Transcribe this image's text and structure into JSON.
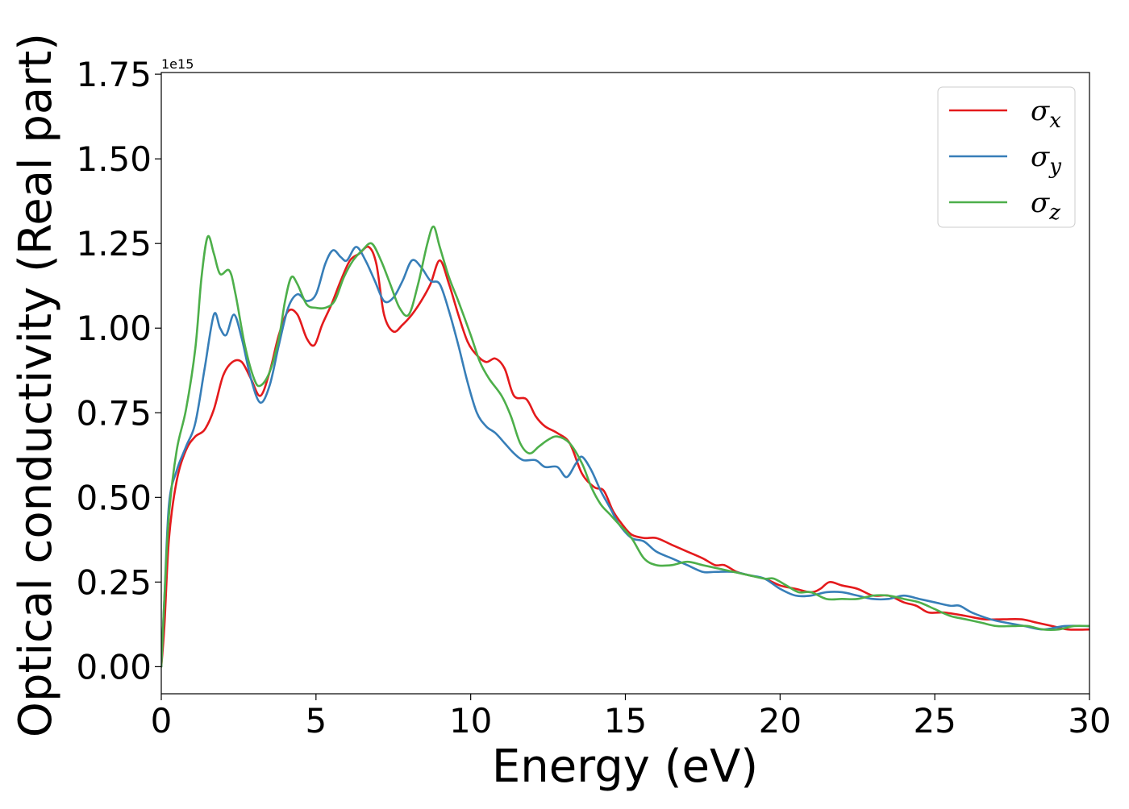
{
  "chart_data": {
    "type": "line",
    "xlabel": "Energy (eV)",
    "ylabel": "Optical conductivity (Real part)",
    "offset_text": "1e15",
    "xlim": [
      0,
      30
    ],
    "ylim": [
      -0.08,
      1.755
    ],
    "x_ticks": [
      0,
      5,
      10,
      15,
      20,
      25,
      30
    ],
    "x_tick_labels": [
      "0",
      "5",
      "10",
      "15",
      "20",
      "25",
      "30"
    ],
    "y_ticks": [
      0.0,
      0.25,
      0.5,
      0.75,
      1.0,
      1.25,
      1.5,
      1.75
    ],
    "y_tick_labels": [
      "0.00",
      "0.25",
      "0.50",
      "0.75",
      "1.00",
      "1.25",
      "1.50",
      "1.75"
    ],
    "grid": false,
    "legend_position": "top-right",
    "series": [
      {
        "name": "σx",
        "symbol": "σ",
        "sub": "x",
        "color": "#e41a1c",
        "points": [
          [
            0,
            0
          ],
          [
            0.1,
            0.12
          ],
          [
            0.25,
            0.38
          ],
          [
            0.5,
            0.55
          ],
          [
            0.8,
            0.64
          ],
          [
            1.1,
            0.68
          ],
          [
            1.4,
            0.7
          ],
          [
            1.7,
            0.76
          ],
          [
            2.0,
            0.86
          ],
          [
            2.3,
            0.9
          ],
          [
            2.6,
            0.9
          ],
          [
            2.9,
            0.85
          ],
          [
            3.2,
            0.8
          ],
          [
            3.5,
            0.87
          ],
          [
            3.8,
            0.98
          ],
          [
            4.1,
            1.05
          ],
          [
            4.4,
            1.04
          ],
          [
            4.7,
            0.97
          ],
          [
            4.95,
            0.95
          ],
          [
            5.2,
            1.01
          ],
          [
            5.5,
            1.07
          ],
          [
            5.8,
            1.14
          ],
          [
            6.1,
            1.2
          ],
          [
            6.4,
            1.22
          ],
          [
            6.7,
            1.24
          ],
          [
            6.95,
            1.19
          ],
          [
            7.2,
            1.04
          ],
          [
            7.5,
            0.99
          ],
          [
            7.8,
            1.01
          ],
          [
            8.1,
            1.04
          ],
          [
            8.4,
            1.08
          ],
          [
            8.7,
            1.13
          ],
          [
            9.0,
            1.2
          ],
          [
            9.3,
            1.13
          ],
          [
            9.6,
            1.04
          ],
          [
            9.9,
            0.96
          ],
          [
            10.2,
            0.92
          ],
          [
            10.5,
            0.9
          ],
          [
            10.8,
            0.91
          ],
          [
            11.1,
            0.88
          ],
          [
            11.4,
            0.8
          ],
          [
            11.8,
            0.79
          ],
          [
            12.1,
            0.74
          ],
          [
            12.4,
            0.71
          ],
          [
            12.8,
            0.69
          ],
          [
            13.2,
            0.66
          ],
          [
            13.6,
            0.57
          ],
          [
            14.0,
            0.53
          ],
          [
            14.3,
            0.52
          ],
          [
            14.6,
            0.46
          ],
          [
            14.9,
            0.42
          ],
          [
            15.2,
            0.39
          ],
          [
            15.6,
            0.38
          ],
          [
            16.0,
            0.38
          ],
          [
            16.5,
            0.36
          ],
          [
            17.0,
            0.34
          ],
          [
            17.5,
            0.32
          ],
          [
            17.9,
            0.3
          ],
          [
            18.2,
            0.3
          ],
          [
            18.6,
            0.28
          ],
          [
            19.0,
            0.27
          ],
          [
            19.5,
            0.26
          ],
          [
            20.0,
            0.24
          ],
          [
            20.5,
            0.23
          ],
          [
            21.0,
            0.22
          ],
          [
            21.3,
            0.23
          ],
          [
            21.6,
            0.25
          ],
          [
            22.0,
            0.24
          ],
          [
            22.5,
            0.23
          ],
          [
            23.0,
            0.21
          ],
          [
            23.5,
            0.21
          ],
          [
            24.0,
            0.19
          ],
          [
            24.4,
            0.18
          ],
          [
            24.8,
            0.16
          ],
          [
            25.3,
            0.16
          ],
          [
            26.0,
            0.15
          ],
          [
            26.6,
            0.14
          ],
          [
            27.2,
            0.14
          ],
          [
            27.8,
            0.14
          ],
          [
            28.3,
            0.13
          ],
          [
            28.8,
            0.12
          ],
          [
            29.3,
            0.11
          ],
          [
            30.0,
            0.11
          ]
        ]
      },
      {
        "name": "σy",
        "symbol": "σ",
        "sub": "y",
        "color": "#377eb8",
        "points": [
          [
            0,
            0
          ],
          [
            0.1,
            0.2
          ],
          [
            0.25,
            0.48
          ],
          [
            0.5,
            0.58
          ],
          [
            0.8,
            0.65
          ],
          [
            1.1,
            0.72
          ],
          [
            1.4,
            0.88
          ],
          [
            1.7,
            1.04
          ],
          [
            1.9,
            1.0
          ],
          [
            2.1,
            0.98
          ],
          [
            2.35,
            1.04
          ],
          [
            2.6,
            0.97
          ],
          [
            2.9,
            0.85
          ],
          [
            3.2,
            0.78
          ],
          [
            3.5,
            0.83
          ],
          [
            3.8,
            0.95
          ],
          [
            4.1,
            1.06
          ],
          [
            4.4,
            1.1
          ],
          [
            4.7,
            1.08
          ],
          [
            5.0,
            1.1
          ],
          [
            5.3,
            1.19
          ],
          [
            5.55,
            1.23
          ],
          [
            5.8,
            1.21
          ],
          [
            6.0,
            1.2
          ],
          [
            6.3,
            1.24
          ],
          [
            6.6,
            1.2
          ],
          [
            6.9,
            1.14
          ],
          [
            7.2,
            1.08
          ],
          [
            7.5,
            1.09
          ],
          [
            7.8,
            1.14
          ],
          [
            8.1,
            1.2
          ],
          [
            8.4,
            1.18
          ],
          [
            8.7,
            1.14
          ],
          [
            9.0,
            1.13
          ],
          [
            9.3,
            1.05
          ],
          [
            9.6,
            0.95
          ],
          [
            9.9,
            0.84
          ],
          [
            10.2,
            0.75
          ],
          [
            10.5,
            0.71
          ],
          [
            10.8,
            0.69
          ],
          [
            11.1,
            0.66
          ],
          [
            11.4,
            0.63
          ],
          [
            11.7,
            0.61
          ],
          [
            12.1,
            0.61
          ],
          [
            12.4,
            0.59
          ],
          [
            12.8,
            0.59
          ],
          [
            13.1,
            0.56
          ],
          [
            13.4,
            0.6
          ],
          [
            13.6,
            0.62
          ],
          [
            13.9,
            0.58
          ],
          [
            14.2,
            0.52
          ],
          [
            14.5,
            0.47
          ],
          [
            14.8,
            0.42
          ],
          [
            15.2,
            0.38
          ],
          [
            15.6,
            0.37
          ],
          [
            16.0,
            0.34
          ],
          [
            16.5,
            0.32
          ],
          [
            17.0,
            0.3
          ],
          [
            17.5,
            0.28
          ],
          [
            17.9,
            0.28
          ],
          [
            18.5,
            0.28
          ],
          [
            19.0,
            0.27
          ],
          [
            19.5,
            0.26
          ],
          [
            20.0,
            0.23
          ],
          [
            20.5,
            0.21
          ],
          [
            21.0,
            0.21
          ],
          [
            21.5,
            0.22
          ],
          [
            22.0,
            0.22
          ],
          [
            22.5,
            0.21
          ],
          [
            23.0,
            0.2
          ],
          [
            23.5,
            0.2
          ],
          [
            24.0,
            0.21
          ],
          [
            24.5,
            0.2
          ],
          [
            25.0,
            0.19
          ],
          [
            25.5,
            0.18
          ],
          [
            25.8,
            0.18
          ],
          [
            26.2,
            0.16
          ],
          [
            26.8,
            0.14
          ],
          [
            27.3,
            0.13
          ],
          [
            27.9,
            0.12
          ],
          [
            28.5,
            0.11
          ],
          [
            29.2,
            0.12
          ],
          [
            30.0,
            0.12
          ]
        ]
      },
      {
        "name": "σz",
        "symbol": "σ",
        "sub": "z",
        "color": "#4daf4a",
        "points": [
          [
            0,
            0
          ],
          [
            0.1,
            0.2
          ],
          [
            0.25,
            0.45
          ],
          [
            0.5,
            0.64
          ],
          [
            0.8,
            0.76
          ],
          [
            1.1,
            0.94
          ],
          [
            1.3,
            1.15
          ],
          [
            1.5,
            1.27
          ],
          [
            1.7,
            1.22
          ],
          [
            1.9,
            1.16
          ],
          [
            2.2,
            1.17
          ],
          [
            2.4,
            1.1
          ],
          [
            2.7,
            0.95
          ],
          [
            3.0,
            0.85
          ],
          [
            3.2,
            0.83
          ],
          [
            3.5,
            0.87
          ],
          [
            3.8,
            0.97
          ],
          [
            4.0,
            1.08
          ],
          [
            4.2,
            1.15
          ],
          [
            4.4,
            1.13
          ],
          [
            4.7,
            1.07
          ],
          [
            5.0,
            1.06
          ],
          [
            5.3,
            1.06
          ],
          [
            5.6,
            1.08
          ],
          [
            5.9,
            1.15
          ],
          [
            6.2,
            1.2
          ],
          [
            6.5,
            1.23
          ],
          [
            6.8,
            1.25
          ],
          [
            7.1,
            1.2
          ],
          [
            7.4,
            1.13
          ],
          [
            7.7,
            1.06
          ],
          [
            8.0,
            1.04
          ],
          [
            8.3,
            1.13
          ],
          [
            8.6,
            1.25
          ],
          [
            8.8,
            1.3
          ],
          [
            9.0,
            1.24
          ],
          [
            9.3,
            1.15
          ],
          [
            9.6,
            1.08
          ],
          [
            10.0,
            0.98
          ],
          [
            10.3,
            0.9
          ],
          [
            10.6,
            0.85
          ],
          [
            11.0,
            0.8
          ],
          [
            11.3,
            0.74
          ],
          [
            11.6,
            0.66
          ],
          [
            11.9,
            0.63
          ],
          [
            12.2,
            0.65
          ],
          [
            12.5,
            0.67
          ],
          [
            12.8,
            0.68
          ],
          [
            13.2,
            0.66
          ],
          [
            13.6,
            0.6
          ],
          [
            13.9,
            0.53
          ],
          [
            14.2,
            0.48
          ],
          [
            14.5,
            0.45
          ],
          [
            14.8,
            0.42
          ],
          [
            15.2,
            0.38
          ],
          [
            15.6,
            0.32
          ],
          [
            16.0,
            0.3
          ],
          [
            16.5,
            0.3
          ],
          [
            17.0,
            0.31
          ],
          [
            17.5,
            0.3
          ],
          [
            18.0,
            0.29
          ],
          [
            18.5,
            0.28
          ],
          [
            19.0,
            0.27
          ],
          [
            19.5,
            0.26
          ],
          [
            19.8,
            0.26
          ],
          [
            20.2,
            0.24
          ],
          [
            20.6,
            0.22
          ],
          [
            21.0,
            0.22
          ],
          [
            21.5,
            0.2
          ],
          [
            22.0,
            0.2
          ],
          [
            22.5,
            0.2
          ],
          [
            23.0,
            0.21
          ],
          [
            23.5,
            0.21
          ],
          [
            24.0,
            0.2
          ],
          [
            24.5,
            0.19
          ],
          [
            25.0,
            0.17
          ],
          [
            25.5,
            0.15
          ],
          [
            26.0,
            0.14
          ],
          [
            26.5,
            0.13
          ],
          [
            27.0,
            0.12
          ],
          [
            27.5,
            0.12
          ],
          [
            28.0,
            0.12
          ],
          [
            28.5,
            0.11
          ],
          [
            29.0,
            0.11
          ],
          [
            29.5,
            0.12
          ],
          [
            30.0,
            0.12
          ]
        ]
      }
    ]
  }
}
